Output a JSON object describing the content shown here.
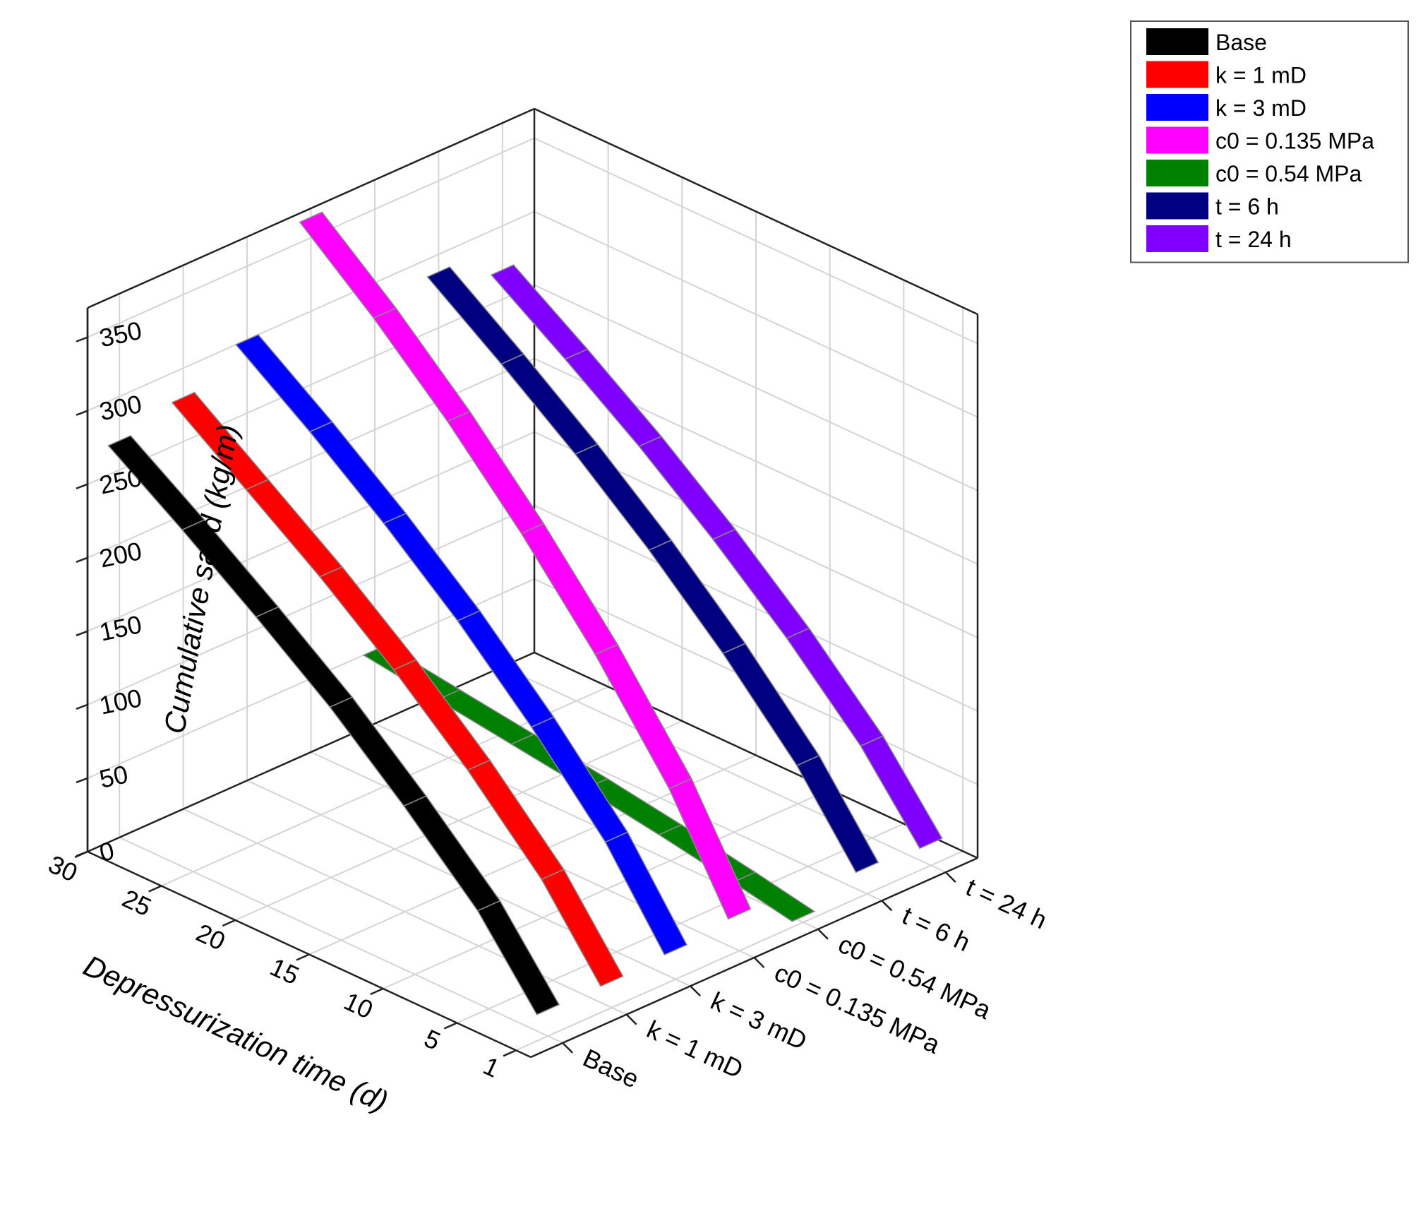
{
  "chart_data": {
    "type": "3d-ribbon",
    "title": "",
    "xlabel": "Depressurization time (d)",
    "ylabel": "",
    "zlabel": "Cumulative sand (kg/m)",
    "x_ticks": [
      "1",
      "5",
      "10",
      "15",
      "20",
      "25",
      "30"
    ],
    "x_range": [
      0,
      30
    ],
    "categories": [
      "Base",
      "k = 1 mD",
      "k = 3 mD",
      "c0 = 0.135 MPa",
      "c0 = 0.54 MPa",
      "t = 6 h",
      "t = 24 h"
    ],
    "y_category_labels": [
      "Base",
      "k = 1 mD",
      "k = 3 mD",
      "c0 = 0.135 MPa",
      "c0 = 0.54 MPa",
      "t = 6 h",
      "t = 24 h"
    ],
    "z_ticks": [
      "0",
      "50",
      "100",
      "150",
      "200",
      "250",
      "300",
      "350"
    ],
    "z_range": [
      0,
      370
    ],
    "grid": true,
    "legend_position": "top-right",
    "series": [
      {
        "name": "Base",
        "color": "#000000",
        "x": [
          1,
          5,
          10,
          15,
          20,
          25,
          30
        ],
        "values": [
          18,
          70,
          118,
          162,
          200,
          236,
          270
        ]
      },
      {
        "name": "k = 1 mD",
        "color": "#ff0000",
        "x": [
          1,
          5,
          10,
          15,
          20,
          25,
          30
        ],
        "values": [
          18,
          72,
          123,
          168,
          208,
          244,
          280
        ]
      },
      {
        "name": "k = 3 mD",
        "color": "#0000ff",
        "x": [
          1,
          5,
          10,
          15,
          20,
          25,
          30
        ],
        "values": [
          20,
          78,
          133,
          182,
          225,
          264,
          300
        ]
      },
      {
        "name": "c0 = 0.135 MPa",
        "color": "#ff00ff",
        "x": [
          1,
          5,
          10,
          15,
          20,
          25,
          30
        ],
        "values": [
          25,
          95,
          163,
          222,
          275,
          322,
          364
        ]
      },
      {
        "name": "c0 = 0.54 MPa",
        "color": "#008000",
        "x": [
          1,
          5,
          10,
          15,
          20,
          25,
          30
        ],
        "values": [
          4,
          12,
          21,
          29,
          36,
          43,
          50
        ]
      },
      {
        "name": "t = 6 h",
        "color": "#000080",
        "x": [
          1,
          5,
          10,
          15,
          20,
          25,
          30
        ],
        "values": [
          18,
          72,
          125,
          172,
          214,
          252,
          288
        ]
      },
      {
        "name": "t = 24 h",
        "color": "#8000ff",
        "x": [
          1,
          5,
          10,
          15,
          20,
          25,
          30
        ],
        "values": [
          15,
          66,
          116,
          160,
          200,
          236,
          270
        ]
      }
    ]
  }
}
